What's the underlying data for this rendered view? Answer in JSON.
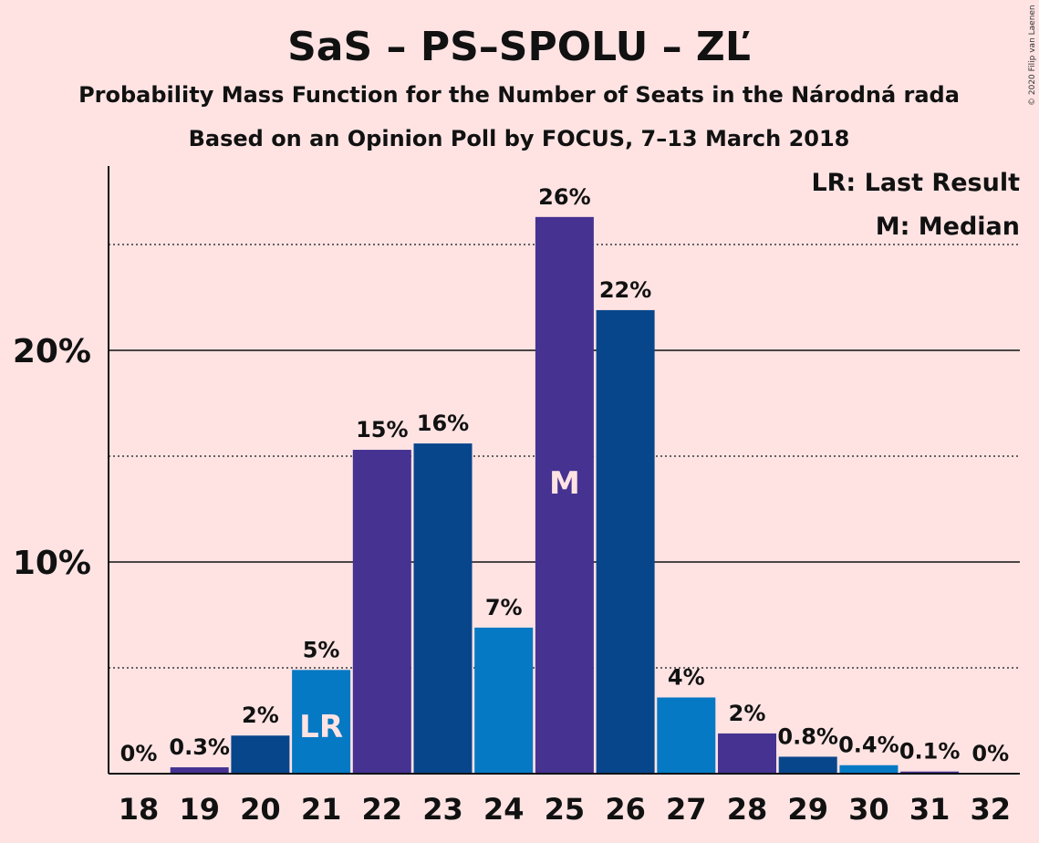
{
  "credit": "© 2020 Filip van Laenen",
  "chart_data": {
    "type": "bar",
    "title": "SaS – PS–SPOLU – ZĽ",
    "subtitle": "Probability Mass Function for the Number of Seats in the Národná rada",
    "subtitle2": "Based on an Opinion Poll by FOCUS, 7–13 March 2018",
    "categories": [
      "18",
      "19",
      "20",
      "21",
      "22",
      "23",
      "24",
      "25",
      "26",
      "27",
      "28",
      "29",
      "30",
      "31",
      "32"
    ],
    "values": [
      0,
      0.3,
      1.8,
      4.9,
      15.3,
      15.6,
      6.9,
      26.3,
      21.9,
      3.6,
      1.9,
      0.8,
      0.4,
      0.1,
      0
    ],
    "value_labels": [
      "0%",
      "0.3%",
      "2%",
      "5%",
      "15%",
      "16%",
      "7%",
      "26%",
      "22%",
      "4%",
      "2%",
      "0.8%",
      "0.4%",
      "0.1%",
      "0%"
    ],
    "colors": [
      "#1e3f8c",
      "#453291",
      "#08468c",
      "#0579c4",
      "#453291",
      "#08468c",
      "#0579c4",
      "#453291",
      "#08468c",
      "#0579c4",
      "#453291",
      "#08468c",
      "#0579c4",
      "#453291",
      "#08468c"
    ],
    "markers": {
      "21": "LR",
      "25": "M"
    },
    "ylim": [
      0,
      28.5
    ],
    "y_major_ticks": [
      10,
      20
    ],
    "y_major_labels": [
      "10%",
      "20%"
    ],
    "y_minor_ticks": [
      5,
      15,
      25
    ],
    "legend": [
      "LR: Last Result",
      "M: Median"
    ],
    "legend_position": "top-right",
    "grid": true
  }
}
